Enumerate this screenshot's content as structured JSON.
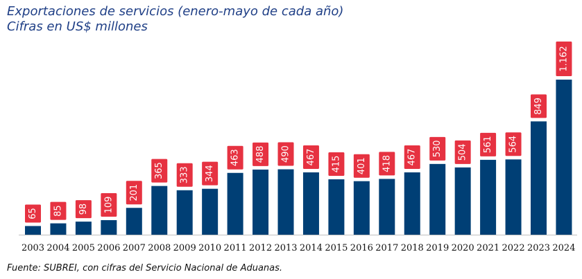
{
  "title_line1": "Exportaciones de servicios (enero-mayo de cada año)",
  "title_line2": "Cifras en US$ millones",
  "source": "Fuente: SUBREI, con cifras del Servicio Nacional de Aduanas.",
  "colors": {
    "bar": "#003f75",
    "label_box": "#e63241",
    "label_text": "#ffffff",
    "baseline": "#bfbfbf"
  },
  "chart_data": {
    "type": "bar",
    "categories": [
      "2003",
      "2004",
      "2005",
      "2006",
      "2007",
      "2008",
      "2009",
      "2010",
      "2011",
      "2012",
      "2013",
      "2014",
      "2015",
      "2016",
      "2017",
      "2018",
      "2019",
      "2020",
      "2021",
      "2022",
      "2023",
      "2024"
    ],
    "values": [
      65,
      85,
      98,
      109,
      201,
      365,
      333,
      344,
      463,
      488,
      490,
      467,
      415,
      401,
      418,
      467,
      530,
      504,
      561,
      564,
      849,
      1162
    ],
    "value_labels": [
      "65",
      "85",
      "98",
      "109",
      "201",
      "365",
      "333",
      "344",
      "463",
      "488",
      "490",
      "467",
      "415",
      "401",
      "418",
      "467",
      "530",
      "504",
      "561",
      "564",
      "849",
      "1.162"
    ],
    "title": "Exportaciones de servicios (enero-mayo de cada año)",
    "subtitle": "Cifras en US$ millones",
    "xlabel": "",
    "ylabel": "",
    "ylim": [
      0,
      1162
    ],
    "grid": false,
    "legend": "none"
  }
}
